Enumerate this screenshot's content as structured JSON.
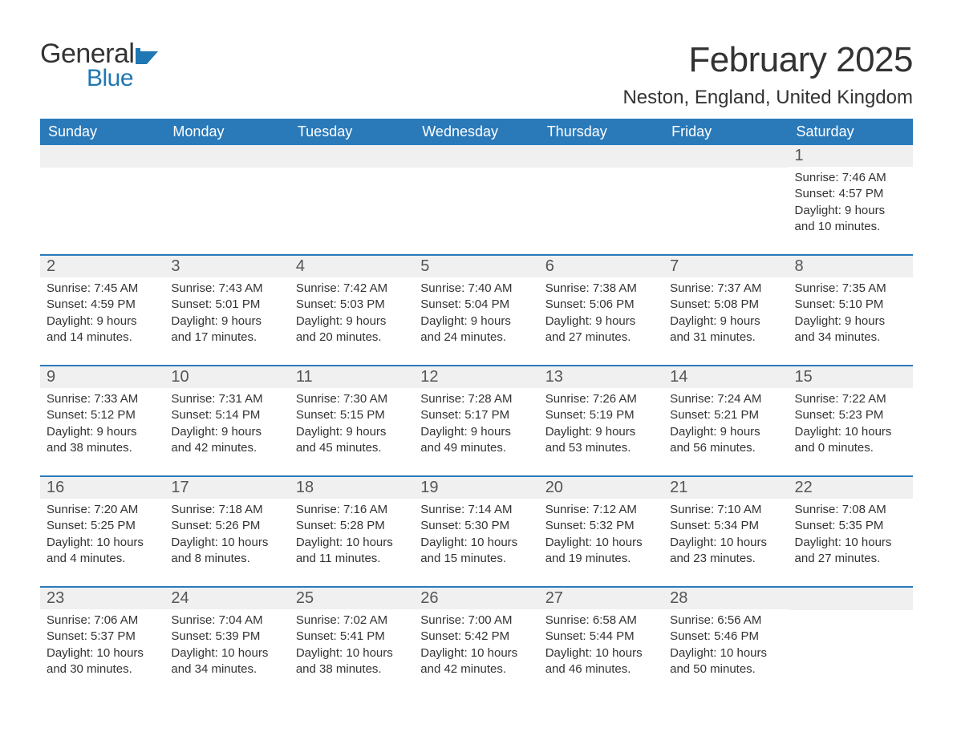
{
  "brand": {
    "text_general": "General",
    "text_blue": "Blue",
    "flag_color": "#1f77b4",
    "general_color": "#333333",
    "blue_color": "#1f77b4"
  },
  "title": {
    "month": "February 2025",
    "location": "Neston, England, United Kingdom"
  },
  "styling": {
    "header_bg": "#2a7aba",
    "header_text": "#ffffff",
    "row_separator": "#2a7aba",
    "daynum_bg": "#f0f0f0",
    "daynum_color": "#555555",
    "body_text_color": "#333333",
    "page_bg": "#ffffff",
    "month_fontsize": 44,
    "location_fontsize": 24,
    "header_fontsize": 18,
    "daynum_fontsize": 20,
    "body_fontsize": 15
  },
  "day_headers": [
    "Sunday",
    "Monday",
    "Tuesday",
    "Wednesday",
    "Thursday",
    "Friday",
    "Saturday"
  ],
  "weeks": [
    [
      {
        "n": "",
        "sunrise": "",
        "sunset": "",
        "daylight_a": "",
        "daylight_b": ""
      },
      {
        "n": "",
        "sunrise": "",
        "sunset": "",
        "daylight_a": "",
        "daylight_b": ""
      },
      {
        "n": "",
        "sunrise": "",
        "sunset": "",
        "daylight_a": "",
        "daylight_b": ""
      },
      {
        "n": "",
        "sunrise": "",
        "sunset": "",
        "daylight_a": "",
        "daylight_b": ""
      },
      {
        "n": "",
        "sunrise": "",
        "sunset": "",
        "daylight_a": "",
        "daylight_b": ""
      },
      {
        "n": "",
        "sunrise": "",
        "sunset": "",
        "daylight_a": "",
        "daylight_b": ""
      },
      {
        "n": "1",
        "sunrise": "Sunrise: 7:46 AM",
        "sunset": "Sunset: 4:57 PM",
        "daylight_a": "Daylight: 9 hours",
        "daylight_b": "and 10 minutes."
      }
    ],
    [
      {
        "n": "2",
        "sunrise": "Sunrise: 7:45 AM",
        "sunset": "Sunset: 4:59 PM",
        "daylight_a": "Daylight: 9 hours",
        "daylight_b": "and 14 minutes."
      },
      {
        "n": "3",
        "sunrise": "Sunrise: 7:43 AM",
        "sunset": "Sunset: 5:01 PM",
        "daylight_a": "Daylight: 9 hours",
        "daylight_b": "and 17 minutes."
      },
      {
        "n": "4",
        "sunrise": "Sunrise: 7:42 AM",
        "sunset": "Sunset: 5:03 PM",
        "daylight_a": "Daylight: 9 hours",
        "daylight_b": "and 20 minutes."
      },
      {
        "n": "5",
        "sunrise": "Sunrise: 7:40 AM",
        "sunset": "Sunset: 5:04 PM",
        "daylight_a": "Daylight: 9 hours",
        "daylight_b": "and 24 minutes."
      },
      {
        "n": "6",
        "sunrise": "Sunrise: 7:38 AM",
        "sunset": "Sunset: 5:06 PM",
        "daylight_a": "Daylight: 9 hours",
        "daylight_b": "and 27 minutes."
      },
      {
        "n": "7",
        "sunrise": "Sunrise: 7:37 AM",
        "sunset": "Sunset: 5:08 PM",
        "daylight_a": "Daylight: 9 hours",
        "daylight_b": "and 31 minutes."
      },
      {
        "n": "8",
        "sunrise": "Sunrise: 7:35 AM",
        "sunset": "Sunset: 5:10 PM",
        "daylight_a": "Daylight: 9 hours",
        "daylight_b": "and 34 minutes."
      }
    ],
    [
      {
        "n": "9",
        "sunrise": "Sunrise: 7:33 AM",
        "sunset": "Sunset: 5:12 PM",
        "daylight_a": "Daylight: 9 hours",
        "daylight_b": "and 38 minutes."
      },
      {
        "n": "10",
        "sunrise": "Sunrise: 7:31 AM",
        "sunset": "Sunset: 5:14 PM",
        "daylight_a": "Daylight: 9 hours",
        "daylight_b": "and 42 minutes."
      },
      {
        "n": "11",
        "sunrise": "Sunrise: 7:30 AM",
        "sunset": "Sunset: 5:15 PM",
        "daylight_a": "Daylight: 9 hours",
        "daylight_b": "and 45 minutes."
      },
      {
        "n": "12",
        "sunrise": "Sunrise: 7:28 AM",
        "sunset": "Sunset: 5:17 PM",
        "daylight_a": "Daylight: 9 hours",
        "daylight_b": "and 49 minutes."
      },
      {
        "n": "13",
        "sunrise": "Sunrise: 7:26 AM",
        "sunset": "Sunset: 5:19 PM",
        "daylight_a": "Daylight: 9 hours",
        "daylight_b": "and 53 minutes."
      },
      {
        "n": "14",
        "sunrise": "Sunrise: 7:24 AM",
        "sunset": "Sunset: 5:21 PM",
        "daylight_a": "Daylight: 9 hours",
        "daylight_b": "and 56 minutes."
      },
      {
        "n": "15",
        "sunrise": "Sunrise: 7:22 AM",
        "sunset": "Sunset: 5:23 PM",
        "daylight_a": "Daylight: 10 hours",
        "daylight_b": "and 0 minutes."
      }
    ],
    [
      {
        "n": "16",
        "sunrise": "Sunrise: 7:20 AM",
        "sunset": "Sunset: 5:25 PM",
        "daylight_a": "Daylight: 10 hours",
        "daylight_b": "and 4 minutes."
      },
      {
        "n": "17",
        "sunrise": "Sunrise: 7:18 AM",
        "sunset": "Sunset: 5:26 PM",
        "daylight_a": "Daylight: 10 hours",
        "daylight_b": "and 8 minutes."
      },
      {
        "n": "18",
        "sunrise": "Sunrise: 7:16 AM",
        "sunset": "Sunset: 5:28 PM",
        "daylight_a": "Daylight: 10 hours",
        "daylight_b": "and 11 minutes."
      },
      {
        "n": "19",
        "sunrise": "Sunrise: 7:14 AM",
        "sunset": "Sunset: 5:30 PM",
        "daylight_a": "Daylight: 10 hours",
        "daylight_b": "and 15 minutes."
      },
      {
        "n": "20",
        "sunrise": "Sunrise: 7:12 AM",
        "sunset": "Sunset: 5:32 PM",
        "daylight_a": "Daylight: 10 hours",
        "daylight_b": "and 19 minutes."
      },
      {
        "n": "21",
        "sunrise": "Sunrise: 7:10 AM",
        "sunset": "Sunset: 5:34 PM",
        "daylight_a": "Daylight: 10 hours",
        "daylight_b": "and 23 minutes."
      },
      {
        "n": "22",
        "sunrise": "Sunrise: 7:08 AM",
        "sunset": "Sunset: 5:35 PM",
        "daylight_a": "Daylight: 10 hours",
        "daylight_b": "and 27 minutes."
      }
    ],
    [
      {
        "n": "23",
        "sunrise": "Sunrise: 7:06 AM",
        "sunset": "Sunset: 5:37 PM",
        "daylight_a": "Daylight: 10 hours",
        "daylight_b": "and 30 minutes."
      },
      {
        "n": "24",
        "sunrise": "Sunrise: 7:04 AM",
        "sunset": "Sunset: 5:39 PM",
        "daylight_a": "Daylight: 10 hours",
        "daylight_b": "and 34 minutes."
      },
      {
        "n": "25",
        "sunrise": "Sunrise: 7:02 AM",
        "sunset": "Sunset: 5:41 PM",
        "daylight_a": "Daylight: 10 hours",
        "daylight_b": "and 38 minutes."
      },
      {
        "n": "26",
        "sunrise": "Sunrise: 7:00 AM",
        "sunset": "Sunset: 5:42 PM",
        "daylight_a": "Daylight: 10 hours",
        "daylight_b": "and 42 minutes."
      },
      {
        "n": "27",
        "sunrise": "Sunrise: 6:58 AM",
        "sunset": "Sunset: 5:44 PM",
        "daylight_a": "Daylight: 10 hours",
        "daylight_b": "and 46 minutes."
      },
      {
        "n": "28",
        "sunrise": "Sunrise: 6:56 AM",
        "sunset": "Sunset: 5:46 PM",
        "daylight_a": "Daylight: 10 hours",
        "daylight_b": "and 50 minutes."
      },
      {
        "n": "",
        "sunrise": "",
        "sunset": "",
        "daylight_a": "",
        "daylight_b": ""
      }
    ]
  ]
}
